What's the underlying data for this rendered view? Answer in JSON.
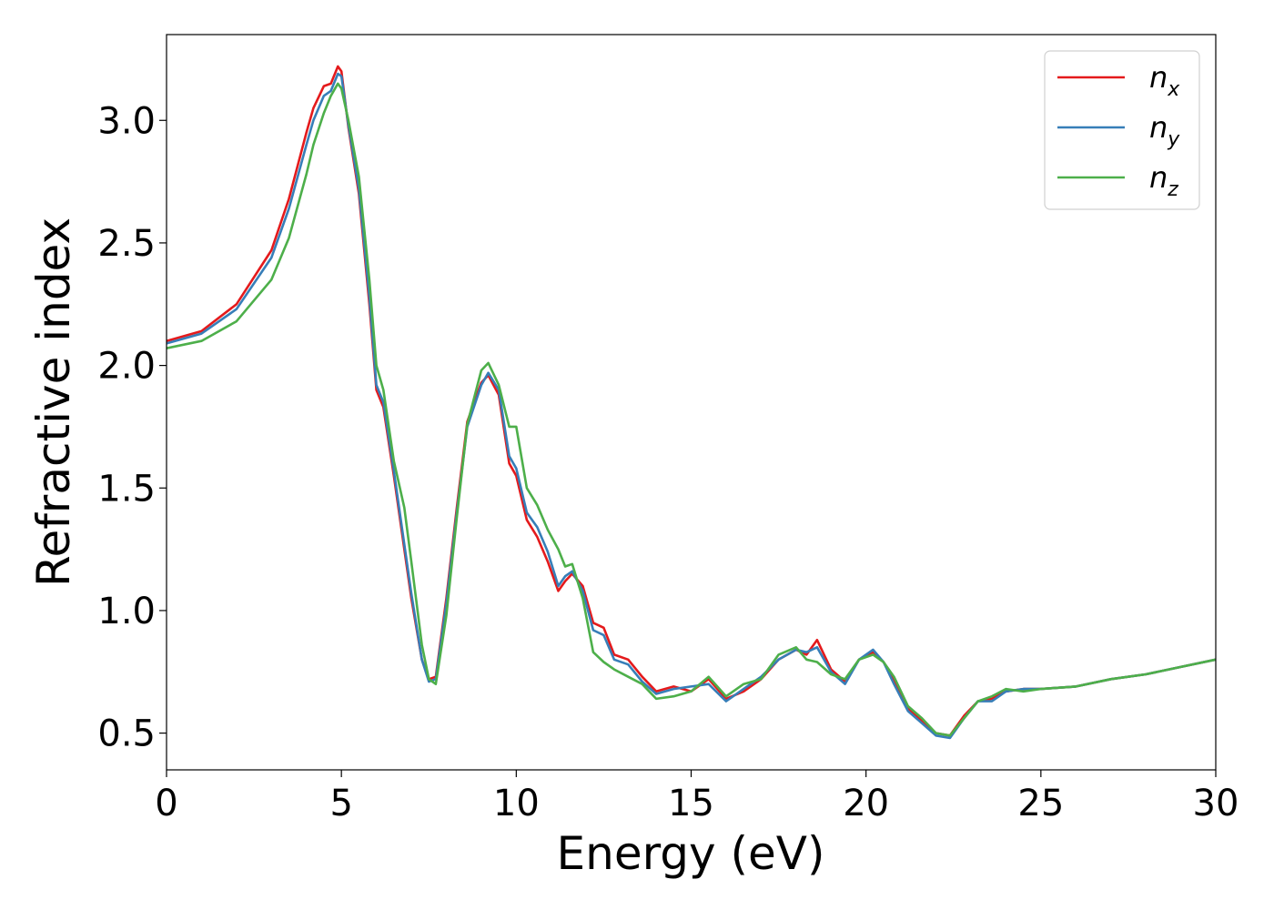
{
  "chart_data": {
    "type": "line",
    "title": "",
    "xlabel": "Energy (eV)",
    "ylabel": "Refractive index",
    "xlim": [
      0,
      30
    ],
    "ylim": [
      0.35,
      3.35
    ],
    "xticks": [
      0,
      5,
      10,
      15,
      20,
      25,
      30
    ],
    "xtick_labels": [
      "0",
      "5",
      "10",
      "15",
      "20",
      "25",
      "30"
    ],
    "yticks": [
      0.5,
      1.0,
      1.5,
      2.0,
      2.5,
      3.0
    ],
    "ytick_labels": [
      "0.5",
      "1.0",
      "1.5",
      "2.0",
      "2.5",
      "3.0"
    ],
    "grid": false,
    "legend_position": "top-right",
    "series": [
      {
        "name": "n_x",
        "label_base": "n",
        "label_sub": "x",
        "color": "#e41a1c",
        "x": [
          0,
          1,
          2,
          3,
          3.5,
          4,
          4.2,
          4.5,
          4.7,
          4.9,
          5.0,
          5.2,
          5.5,
          5.8,
          6.0,
          6.2,
          6.5,
          6.8,
          7.0,
          7.3,
          7.5,
          7.7,
          8.0,
          8.3,
          8.6,
          9.0,
          9.2,
          9.5,
          9.8,
          10.0,
          10.3,
          10.6,
          10.9,
          11.2,
          11.4,
          11.6,
          11.9,
          12.2,
          12.5,
          12.8,
          13.2,
          13.6,
          14.0,
          14.5,
          15.0,
          15.5,
          16.0,
          16.5,
          17.0,
          17.5,
          18.0,
          18.3,
          18.6,
          19.0,
          19.4,
          19.8,
          20.2,
          20.5,
          20.8,
          21.2,
          21.6,
          22.0,
          22.4,
          22.8,
          23.2,
          23.6,
          24.0,
          24.5,
          25.0,
          26.0,
          27.0,
          28.0,
          29.0,
          30.0
        ],
        "y": [
          2.1,
          2.14,
          2.25,
          2.47,
          2.68,
          2.95,
          3.05,
          3.14,
          3.15,
          3.22,
          3.2,
          2.97,
          2.7,
          2.25,
          1.9,
          1.83,
          1.55,
          1.25,
          1.05,
          0.8,
          0.72,
          0.73,
          1.05,
          1.42,
          1.77,
          1.93,
          1.96,
          1.88,
          1.6,
          1.55,
          1.37,
          1.3,
          1.2,
          1.08,
          1.12,
          1.15,
          1.1,
          0.95,
          0.93,
          0.82,
          0.8,
          0.73,
          0.67,
          0.69,
          0.67,
          0.72,
          0.64,
          0.67,
          0.72,
          0.8,
          0.84,
          0.82,
          0.88,
          0.76,
          0.71,
          0.8,
          0.83,
          0.79,
          0.72,
          0.6,
          0.55,
          0.5,
          0.49,
          0.57,
          0.63,
          0.64,
          0.67,
          0.68,
          0.68,
          0.69,
          0.72,
          0.74,
          0.77,
          0.8
        ]
      },
      {
        "name": "n_y",
        "label_base": "n",
        "label_sub": "y",
        "color": "#377eb8",
        "x": [
          0,
          1,
          2,
          3,
          3.5,
          4,
          4.2,
          4.5,
          4.7,
          4.9,
          5.0,
          5.2,
          5.5,
          5.8,
          6.0,
          6.2,
          6.5,
          6.8,
          7.0,
          7.3,
          7.5,
          7.7,
          8.0,
          8.3,
          8.6,
          9.0,
          9.2,
          9.5,
          9.8,
          10.0,
          10.3,
          10.6,
          10.9,
          11.2,
          11.4,
          11.6,
          11.9,
          12.2,
          12.5,
          12.8,
          13.2,
          13.6,
          14.0,
          14.5,
          15.0,
          15.5,
          16.0,
          16.5,
          17.0,
          17.5,
          18.0,
          18.3,
          18.6,
          19.0,
          19.4,
          19.8,
          20.2,
          20.5,
          20.8,
          21.2,
          21.6,
          22.0,
          22.4,
          22.8,
          23.2,
          23.6,
          24.0,
          24.5,
          25.0,
          26.0,
          27.0,
          28.0,
          29.0,
          30.0
        ],
        "y": [
          2.09,
          2.13,
          2.23,
          2.44,
          2.64,
          2.9,
          3.0,
          3.1,
          3.12,
          3.19,
          3.18,
          2.98,
          2.72,
          2.28,
          1.92,
          1.85,
          1.57,
          1.27,
          1.07,
          0.8,
          0.71,
          0.72,
          1.03,
          1.4,
          1.75,
          1.92,
          1.97,
          1.9,
          1.63,
          1.58,
          1.4,
          1.34,
          1.24,
          1.1,
          1.14,
          1.16,
          1.08,
          0.92,
          0.9,
          0.8,
          0.78,
          0.71,
          0.66,
          0.68,
          0.69,
          0.7,
          0.63,
          0.68,
          0.73,
          0.8,
          0.84,
          0.83,
          0.85,
          0.75,
          0.7,
          0.8,
          0.84,
          0.79,
          0.7,
          0.59,
          0.54,
          0.49,
          0.48,
          0.56,
          0.63,
          0.63,
          0.67,
          0.68,
          0.68,
          0.69,
          0.72,
          0.74,
          0.77,
          0.8
        ]
      },
      {
        "name": "n_z",
        "label_base": "n",
        "label_sub": "z",
        "color": "#4daf4a",
        "x": [
          0,
          1,
          2,
          3,
          3.5,
          4,
          4.2,
          4.5,
          4.7,
          4.9,
          5.0,
          5.2,
          5.5,
          5.8,
          6.0,
          6.2,
          6.5,
          6.8,
          7.0,
          7.3,
          7.5,
          7.7,
          8.0,
          8.3,
          8.6,
          9.0,
          9.2,
          9.5,
          9.8,
          10.0,
          10.3,
          10.6,
          10.9,
          11.2,
          11.4,
          11.6,
          11.9,
          12.2,
          12.5,
          12.8,
          13.2,
          13.6,
          14.0,
          14.5,
          15.0,
          15.5,
          16.0,
          16.5,
          17.0,
          17.5,
          18.0,
          18.3,
          18.6,
          19.0,
          19.4,
          19.8,
          20.2,
          20.5,
          20.8,
          21.2,
          21.6,
          22.0,
          22.4,
          22.8,
          23.2,
          23.6,
          24.0,
          24.5,
          25.0,
          26.0,
          27.0,
          28.0,
          29.0,
          30.0
        ],
        "y": [
          2.07,
          2.1,
          2.18,
          2.35,
          2.52,
          2.78,
          2.9,
          3.03,
          3.1,
          3.15,
          3.13,
          3.0,
          2.77,
          2.35,
          2.0,
          1.9,
          1.61,
          1.42,
          1.2,
          0.86,
          0.72,
          0.7,
          0.98,
          1.38,
          1.76,
          1.98,
          2.01,
          1.92,
          1.75,
          1.75,
          1.5,
          1.43,
          1.33,
          1.25,
          1.18,
          1.19,
          1.05,
          0.83,
          0.79,
          0.76,
          0.73,
          0.7,
          0.64,
          0.65,
          0.67,
          0.73,
          0.65,
          0.7,
          0.72,
          0.82,
          0.85,
          0.8,
          0.79,
          0.74,
          0.72,
          0.8,
          0.82,
          0.79,
          0.73,
          0.61,
          0.56,
          0.5,
          0.49,
          0.56,
          0.63,
          0.65,
          0.68,
          0.67,
          0.68,
          0.69,
          0.72,
          0.74,
          0.77,
          0.8
        ]
      }
    ]
  }
}
